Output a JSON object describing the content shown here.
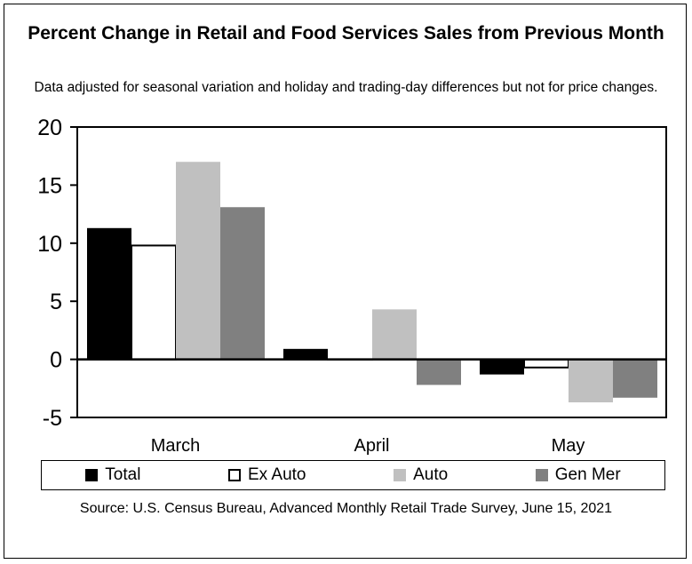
{
  "chart_data": {
    "type": "bar",
    "title": "Percent Change in Retail and Food Services Sales from Previous Month",
    "subtitle": "Data adjusted for seasonal variation and holiday and trading-day differences but not for price changes.",
    "source": "Source: U.S. Census Bureau, Advanced Monthly Retail Trade Survey, June 15, 2021",
    "categories": [
      "March",
      "April",
      "May"
    ],
    "series": [
      {
        "name": "Total",
        "values": [
          11.3,
          0.9,
          -1.3
        ],
        "color": "#000000",
        "outline": "#000000"
      },
      {
        "name": "Ex Auto",
        "values": [
          9.8,
          0.0,
          -0.7
        ],
        "color": "#ffffff",
        "outline": "#000000"
      },
      {
        "name": "Auto",
        "values": [
          17.0,
          4.3,
          -3.7
        ],
        "color": "#c0c0c0",
        "outline": "#c0c0c0"
      },
      {
        "name": "Gen Mer",
        "values": [
          13.1,
          -2.2,
          -3.3
        ],
        "color": "#808080",
        "outline": "#808080"
      }
    ],
    "yticks": [
      "20",
      "15",
      "10",
      "5",
      "0",
      "-5"
    ],
    "ylim": [
      -5,
      20
    ],
    "xlabel": "",
    "ylabel": "",
    "legend_position": "bottom"
  }
}
